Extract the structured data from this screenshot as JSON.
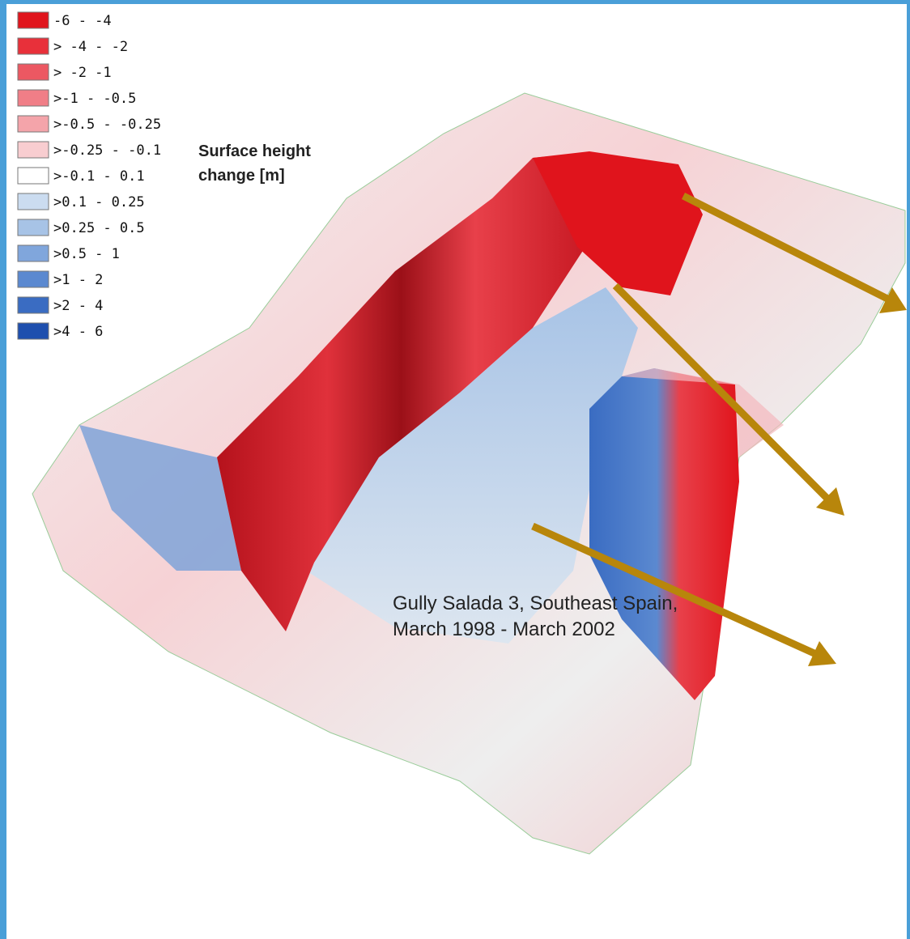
{
  "legend": {
    "title_lines": [
      "Surface height",
      "change [m]"
    ],
    "items": [
      {
        "label": "-6 - -4",
        "color": "#e0141c"
      },
      {
        "label": "> -4 - -2",
        "color": "#e8303a"
      },
      {
        "label": "> -2 -1",
        "color": "#ec5862"
      },
      {
        "label": ">-1 - -0.5",
        "color": "#f07e87"
      },
      {
        "label": ">-0.5 - -0.25",
        "color": "#f4a4aa"
      },
      {
        "label": ">-0.25 - -0.1",
        "color": "#f8cdd0"
      },
      {
        "label": ">-0.1 - 0.1",
        "color": "#ffffff"
      },
      {
        "label": ">0.1 - 0.25",
        "color": "#cbdcf0"
      },
      {
        "label": ">0.25 - 0.5",
        "color": "#a7c3e6"
      },
      {
        "label": ">0.5 - 1",
        "color": "#80a6dc"
      },
      {
        "label": ">1 - 2",
        "color": "#5b89d0"
      },
      {
        "label": ">2 - 4",
        "color": "#3a6cc2"
      },
      {
        "label": ">4 - 6",
        "color": "#1e4fae"
      }
    ]
  },
  "caption": {
    "lines": [
      "Gully Salada 3, Southeast Spain,",
      "March 1998 - March 2002"
    ]
  }
}
